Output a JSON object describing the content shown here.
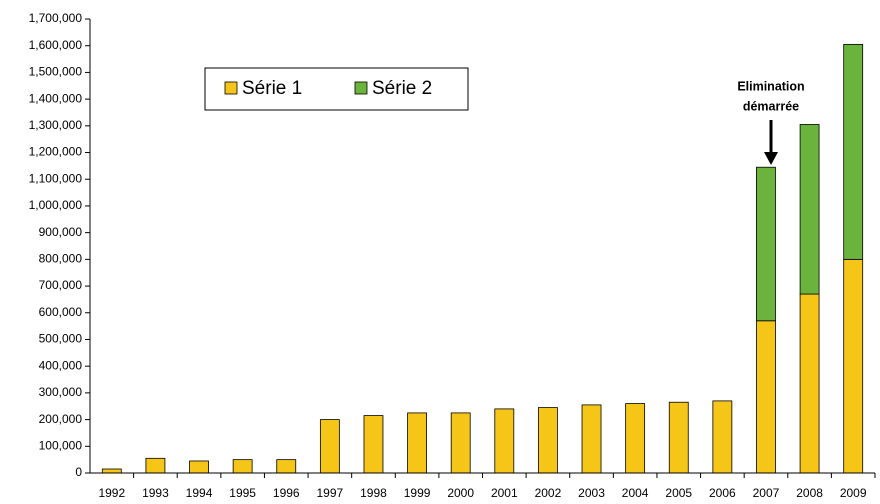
{
  "chart_data": {
    "type": "bar",
    "stacked": true,
    "categories": [
      "1992",
      "1993",
      "1994",
      "1995",
      "1996",
      "1997",
      "1998",
      "1999",
      "2000",
      "2001",
      "2002",
      "2003",
      "2004",
      "2005",
      "2006",
      "2007",
      "2008",
      "2009"
    ],
    "series": [
      {
        "name": "Série 1",
        "color": "#f5c518",
        "values": [
          15000,
          55000,
          45000,
          50000,
          50000,
          200000,
          215000,
          225000,
          225000,
          240000,
          245000,
          255000,
          260000,
          265000,
          270000,
          570000,
          670000,
          800000
        ]
      },
      {
        "name": "Série 2",
        "color": "#6ab43e",
        "values": [
          null,
          null,
          null,
          null,
          null,
          null,
          null,
          null,
          null,
          null,
          null,
          null,
          null,
          null,
          null,
          575000,
          635000,
          805000
        ]
      }
    ],
    "ylim": [
      0,
      1700000
    ],
    "yticks": [
      0,
      {
        "value": 100000,
        "label": "100,000"
      },
      {
        "value": 200000,
        "label": "200,000"
      },
      {
        "value": 300000,
        "label": "300,000"
      },
      {
        "value": 400000,
        "label": "400,000"
      },
      {
        "value": 500000,
        "label": "500,000"
      },
      {
        "value": 600000,
        "label": "600,000"
      },
      {
        "value": 700000,
        "label": "700,000"
      },
      {
        "value": 800000,
        "label": "800,000"
      },
      {
        "value": 900000,
        "label": "900,000"
      },
      {
        "value": 1000000,
        "label": "1,000,000"
      },
      {
        "value": 1100000,
        "label": "1,100,000"
      },
      {
        "value": 1200000,
        "label": "1,200,000"
      },
      {
        "value": 1300000,
        "label": "1,300,000"
      },
      {
        "value": 1400000,
        "label": "1,400,000"
      },
      {
        "value": 1500000,
        "label": "1,500,000"
      },
      {
        "value": 1600000,
        "label": "1,600,000"
      },
      {
        "value": 1700000,
        "label": "1,700,000"
      }
    ],
    "annotation": [
      "Elimination",
      "démarrée"
    ],
    "grid": false
  }
}
